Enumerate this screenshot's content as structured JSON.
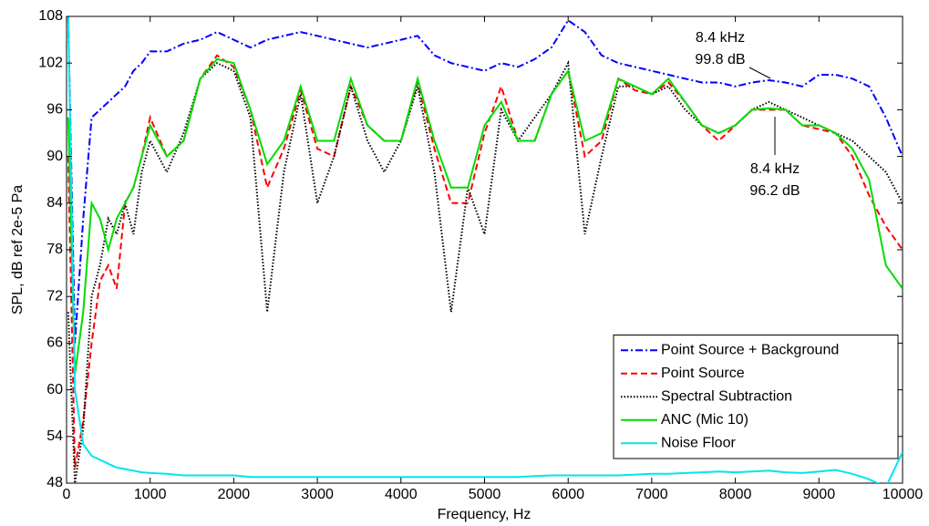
{
  "chart_data": {
    "type": "line",
    "xlabel": "Frequency, Hz",
    "ylabel": "SPL, dB ref 2e-5 Pa",
    "x": [
      20,
      100,
      200,
      300,
      400,
      500,
      600,
      700,
      800,
      900,
      1000,
      1200,
      1400,
      1600,
      1800,
      2000,
      2200,
      2400,
      2600,
      2800,
      3000,
      3200,
      3400,
      3600,
      3800,
      4000,
      4200,
      4400,
      4600,
      4800,
      5000,
      5200,
      5400,
      5600,
      5800,
      6000,
      6200,
      6400,
      6600,
      6800,
      7000,
      7200,
      7400,
      7600,
      7800,
      8000,
      8200,
      8400,
      8600,
      8800,
      9000,
      9200,
      9400,
      9600,
      9800,
      10000
    ],
    "series": [
      {
        "name": "Point Source + Background",
        "color": "#0000ff",
        "linestyle": "dashdot",
        "values": [
          108,
          66,
          82,
          95,
          96,
          97,
          98,
          99,
          101,
          102,
          103.5,
          103.5,
          104.5,
          105,
          106,
          105,
          104,
          105,
          105.5,
          106,
          105.5,
          105,
          104.5,
          104,
          104.5,
          105,
          105.5,
          103,
          102,
          101.5,
          101,
          102,
          101.5,
          102.5,
          104,
          107.5,
          106,
          103,
          102,
          101.5,
          101,
          100.5,
          100,
          99.5,
          99.5,
          99,
          99.5,
          99.8,
          99.5,
          99,
          100.5,
          100.5,
          100,
          99,
          95,
          90
        ]
      },
      {
        "name": "Point Source",
        "color": "#ff0000",
        "linestyle": "dashed",
        "values": [
          90,
          50,
          56,
          66,
          74,
          76,
          73,
          84,
          86,
          90,
          95,
          90,
          92,
          100,
          103,
          101.5,
          96,
          86,
          91,
          98.5,
          91,
          90,
          99,
          94,
          92,
          92,
          99.5,
          91,
          84,
          84,
          93,
          99,
          92,
          92,
          98,
          101,
          90,
          92,
          100,
          98.5,
          98,
          99.5,
          97,
          94,
          92,
          94,
          96,
          96,
          96,
          94,
          93.5,
          93,
          90,
          85,
          81,
          78
        ]
      },
      {
        "name": "Spectral Subtraction",
        "color": "#000000",
        "linestyle": "dotted",
        "values": [
          70,
          48,
          55,
          72,
          76,
          82,
          80,
          84,
          80,
          88,
          92,
          88,
          93,
          100,
          102,
          101,
          95,
          70,
          88,
          98,
          84,
          90,
          99,
          92,
          88,
          92,
          99,
          88,
          70,
          86,
          80,
          96,
          92,
          95,
          98,
          102,
          80,
          90,
          99,
          99,
          98,
          99,
          96,
          94,
          93,
          94,
          96,
          97,
          96,
          95,
          94,
          93,
          92,
          90,
          88,
          84
        ]
      },
      {
        "name": "ANC (Mic 10)",
        "color": "#00dd00",
        "linestyle": "solid",
        "values": [
          95,
          62,
          70,
          84,
          82,
          78,
          82,
          84,
          86,
          90,
          94,
          90,
          92,
          100,
          102.5,
          102,
          96,
          89,
          92,
          99,
          92,
          92,
          100,
          94,
          92,
          92,
          100,
          92,
          86,
          86,
          94,
          97,
          92,
          92,
          98,
          101,
          92,
          93,
          100,
          99,
          98,
          100,
          97,
          94,
          93,
          94,
          96,
          96.2,
          96,
          94,
          94,
          93,
          91,
          87,
          76,
          73
        ]
      },
      {
        "name": "Noise Floor",
        "color": "#00e5ee",
        "linestyle": "solid",
        "values": [
          108,
          60,
          53,
          51.5,
          51,
          50.5,
          50,
          49.8,
          49.6,
          49.4,
          49.3,
          49.2,
          49,
          49,
          49,
          49,
          48.8,
          48.8,
          48.8,
          48.8,
          48.8,
          48.8,
          48.8,
          48.8,
          48.8,
          48.8,
          48.8,
          48.8,
          48.8,
          48.8,
          48.8,
          48.8,
          48.8,
          48.9,
          49,
          49,
          49,
          49,
          49,
          49.1,
          49.2,
          49.2,
          49.3,
          49.4,
          49.5,
          49.4,
          49.5,
          49.6,
          49.4,
          49.3,
          49.5,
          49.7,
          49.2,
          48.5,
          47.5,
          52
        ]
      }
    ],
    "annotations": [
      {
        "lines": [
          "8.4 kHz",
          "99.8 dB"
        ]
      },
      {
        "lines": [
          "8.4 kHz",
          "96.2 dB"
        ]
      }
    ],
    "xlim": [
      0,
      10000
    ],
    "xticks": [
      0,
      1000,
      2000,
      3000,
      4000,
      5000,
      6000,
      7000,
      8000,
      9000,
      10000
    ],
    "ylim": [
      48,
      108
    ],
    "yticks": [
      48,
      54,
      60,
      66,
      72,
      78,
      84,
      90,
      96,
      102,
      108
    ],
    "legend": "lower right",
    "grid": false
  }
}
